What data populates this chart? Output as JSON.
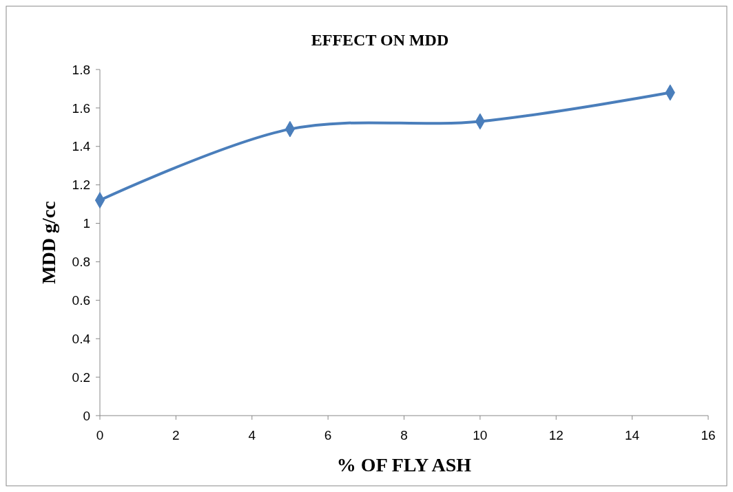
{
  "chart_data": {
    "type": "line",
    "title": "EFFECT ON MDD",
    "xlabel": "% OF FLY ASH",
    "ylabel": "MDD g/cc",
    "x": [
      0,
      5,
      10,
      15
    ],
    "series": [
      {
        "color": "#4a7ebb",
        "values": [
          1.12,
          1.49,
          1.53,
          1.68
        ]
      }
    ],
    "xlim": [
      0,
      16
    ],
    "xticks": [
      0,
      2,
      4,
      6,
      8,
      10,
      12,
      14,
      16
    ],
    "ylim": [
      0,
      1.8
    ],
    "yticks": [
      0,
      0.2,
      0.4,
      0.6,
      0.8,
      1,
      1.2,
      1.4,
      1.6,
      1.8
    ],
    "marker": "diamond",
    "line_style": "solid",
    "grid": false
  }
}
